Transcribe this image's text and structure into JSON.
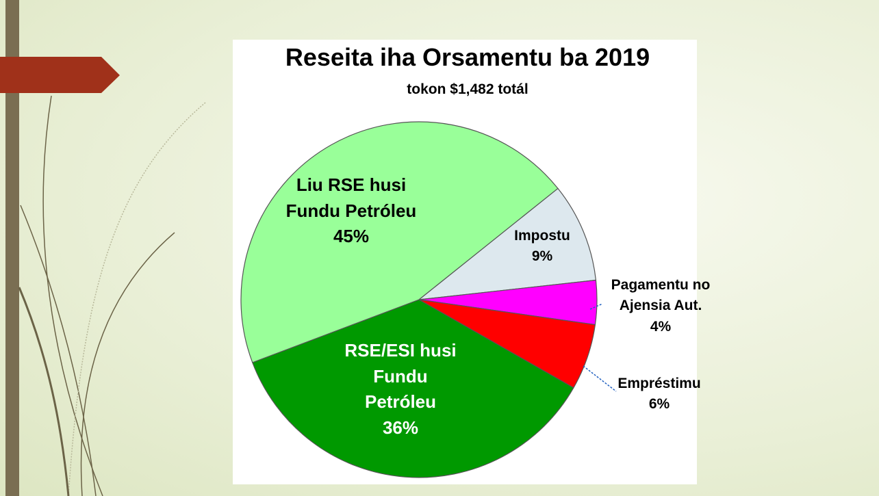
{
  "chart_data": {
    "type": "pie",
    "title": "Reseita iha Orsamentu ba 2019",
    "subtitle": "tokon $1,482 totál",
    "categories": [
      "Impostu",
      "Pagamentu no Ajensia Aut.",
      "Empréstimu",
      "RSE/ESI husi Fundu Petróleu",
      "Liu RSE husi Fundu Petróleu"
    ],
    "values": [
      9,
      4,
      6,
      36,
      45
    ],
    "value_labels": [
      "9%",
      "4%",
      "6%",
      "36%",
      "45%"
    ],
    "colors": [
      "#dde8ee",
      "#ff00ff",
      "#ff0000",
      "#009900",
      "#99ff99"
    ]
  }
}
